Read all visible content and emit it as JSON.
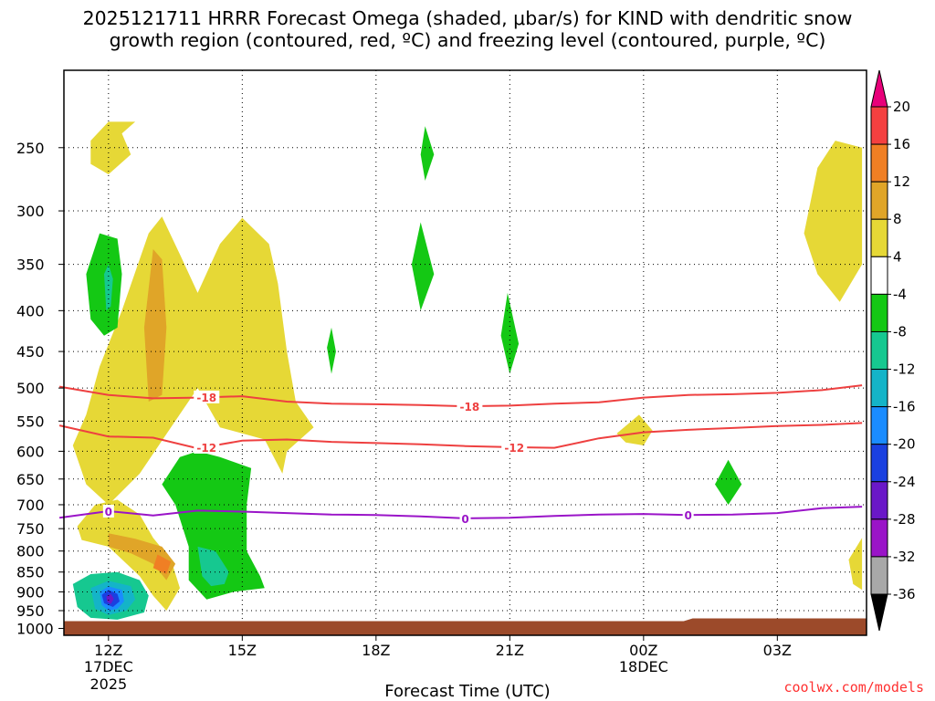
{
  "title_line1": "2025121711 HRRR Forecast Omega (shaded, μbar/s) for KIND with dendritic snow",
  "title_line2": "growth region (contoured, red, ºC) and freezing level (contoured, purple, ºC)",
  "xlabel": "Forecast Time (UTC)",
  "credit": "coolwx.com/models",
  "chart_data": {
    "type": "area",
    "x_ticks": [
      {
        "hour": 12,
        "label": "12Z",
        "sub1": "17DEC",
        "sub2": "2025"
      },
      {
        "hour": 15,
        "label": "15Z",
        "sub1": "",
        "sub2": ""
      },
      {
        "hour": 18,
        "label": "18Z",
        "sub1": "",
        "sub2": ""
      },
      {
        "hour": 21,
        "label": "21Z",
        "sub1": "",
        "sub2": ""
      },
      {
        "hour": 24,
        "label": "00Z",
        "sub1": "18DEC",
        "sub2": ""
      },
      {
        "hour": 27,
        "label": "03Z",
        "sub1": "",
        "sub2": ""
      }
    ],
    "x_range_hours": [
      11,
      29
    ],
    "y_ticks": [
      250,
      300,
      350,
      400,
      450,
      500,
      550,
      600,
      650,
      700,
      750,
      800,
      850,
      900,
      950,
      1000
    ],
    "y_scale": "log-pressure",
    "y_range_hPa": [
      200,
      1020
    ],
    "grid": "dotted",
    "colorbar": {
      "labels": [
        "20",
        "16",
        "12",
        "8",
        "4",
        "-4",
        "-8",
        "-12",
        "-16",
        "-20",
        "-24",
        "-28",
        "-32",
        "-36"
      ],
      "colors": [
        "#e8007a",
        "#f44040",
        "#f07f24",
        "#e0a528",
        "#e6d836",
        "#ffffff",
        "#14c814",
        "#16c890",
        "#14b4c8",
        "#1a8cff",
        "#1a40e0",
        "#6a18c8",
        "#9a14c8",
        "#a8a8a8",
        "#000000"
      ]
    },
    "contours": [
      {
        "name": "-18",
        "color": "#ee4040",
        "points": [
          [
            10.9,
            498
          ],
          [
            12,
            510
          ],
          [
            13,
            515
          ],
          [
            14,
            514
          ],
          [
            15,
            512
          ],
          [
            16,
            520
          ],
          [
            17,
            523
          ],
          [
            18,
            524
          ],
          [
            19,
            525
          ],
          [
            20,
            527
          ],
          [
            21,
            526
          ],
          [
            22,
            523
          ],
          [
            23,
            521
          ],
          [
            24,
            514
          ],
          [
            25,
            510
          ],
          [
            26,
            509
          ],
          [
            27,
            507
          ],
          [
            28,
            503
          ],
          [
            28.9,
            496
          ]
        ]
      },
      {
        "name": "-12",
        "color": "#ee4040",
        "points": [
          [
            10.9,
            557
          ],
          [
            12,
            575
          ],
          [
            13,
            577
          ],
          [
            14,
            595
          ],
          [
            15,
            582
          ],
          [
            16,
            580
          ],
          [
            17,
            584
          ],
          [
            18,
            586
          ],
          [
            19,
            588
          ],
          [
            20,
            591
          ],
          [
            21,
            593
          ],
          [
            22,
            594
          ],
          [
            23,
            578
          ],
          [
            24,
            568
          ],
          [
            25,
            564
          ],
          [
            26,
            561
          ],
          [
            27,
            558
          ],
          [
            28,
            556
          ],
          [
            28.9,
            553
          ]
        ]
      },
      {
        "name": "0",
        "color": "#9a14c8",
        "points": [
          [
            10.9,
            727
          ],
          [
            12,
            713
          ],
          [
            13,
            722
          ],
          [
            14,
            712
          ],
          [
            15,
            714
          ],
          [
            16,
            717
          ],
          [
            17,
            720
          ],
          [
            18,
            721
          ],
          [
            19,
            724
          ],
          [
            20,
            728
          ],
          [
            21,
            727
          ],
          [
            22,
            723
          ],
          [
            23,
            720
          ],
          [
            24,
            719
          ],
          [
            25,
            721
          ],
          [
            26,
            720
          ],
          [
            27,
            717
          ],
          [
            28,
            707
          ],
          [
            28.9,
            704
          ]
        ]
      }
    ],
    "contour_labels": [
      {
        "text": "-18",
        "hour": 14.2,
        "p": 513,
        "color": "#ee4040"
      },
      {
        "text": "-18",
        "hour": 20.1,
        "p": 527,
        "color": "#ee4040"
      },
      {
        "text": "-12",
        "hour": 14.2,
        "p": 593,
        "color": "#ee4040"
      },
      {
        "text": "-12",
        "hour": 21.1,
        "p": 593,
        "color": "#ee4040"
      },
      {
        "text": "0",
        "hour": 12,
        "p": 713,
        "color": "#9a14c8"
      },
      {
        "text": "0",
        "hour": 20,
        "p": 728,
        "color": "#9a14c8"
      },
      {
        "text": "0",
        "hour": 25,
        "p": 721,
        "color": "#9a14c8"
      }
    ],
    "shaded_regions": [
      {
        "name": "rise-4-8-upper-left",
        "color": "#e6d836",
        "points": [
          [
            11.6,
            245
          ],
          [
            12,
            232
          ],
          [
            12.6,
            232
          ],
          [
            12.3,
            240
          ],
          [
            12.5,
            255
          ],
          [
            12,
            270
          ],
          [
            11.6,
            262
          ]
        ]
      },
      {
        "name": "rise-4-8-main",
        "color": "#e6d836",
        "points": [
          [
            11.5,
            540
          ],
          [
            11.8,
            470
          ],
          [
            12.3,
            400
          ],
          [
            12.9,
            320
          ],
          [
            13.2,
            305
          ],
          [
            13.6,
            340
          ],
          [
            14,
            380
          ],
          [
            14.5,
            330
          ],
          [
            15,
            306
          ],
          [
            15.6,
            330
          ],
          [
            15.8,
            370
          ],
          [
            16,
            450
          ],
          [
            16.2,
            520
          ],
          [
            16.6,
            560
          ],
          [
            16,
            600
          ],
          [
            15.9,
            640
          ],
          [
            15.5,
            580
          ],
          [
            14.5,
            560
          ],
          [
            14,
            500
          ],
          [
            13.4,
            560
          ],
          [
            12.7,
            640
          ],
          [
            12,
            700
          ],
          [
            11.5,
            660
          ],
          [
            11.2,
            590
          ]
        ]
      },
      {
        "name": "rise-4-8-low",
        "color": "#e6d836",
        "points": [
          [
            11.3,
            745
          ],
          [
            11.7,
            700
          ],
          [
            12.2,
            690
          ],
          [
            12.7,
            720
          ],
          [
            13,
            770
          ],
          [
            13.4,
            820
          ],
          [
            13.6,
            890
          ],
          [
            13.3,
            950
          ],
          [
            13,
            910
          ],
          [
            12.7,
            860
          ],
          [
            12,
            790
          ],
          [
            11.4,
            775
          ]
        ]
      },
      {
        "name": "rise-8-12",
        "color": "#e0a528",
        "points": [
          [
            13,
            335
          ],
          [
            13.2,
            345
          ],
          [
            13.3,
            420
          ],
          [
            13.2,
            510
          ],
          [
            12.9,
            520
          ],
          [
            12.8,
            420
          ]
        ]
      },
      {
        "name": "rise-8-12-low",
        "color": "#e0a528",
        "points": [
          [
            12,
            760
          ],
          [
            12.6,
            772
          ],
          [
            13.2,
            790
          ],
          [
            13.5,
            830
          ],
          [
            13.3,
            870
          ],
          [
            13,
            830
          ],
          [
            12.5,
            805
          ],
          [
            12,
            790
          ]
        ]
      },
      {
        "name": "rise-12-16",
        "color": "#f07f24",
        "points": [
          [
            13.1,
            808
          ],
          [
            13.4,
            825
          ],
          [
            13.3,
            855
          ],
          [
            13,
            840
          ]
        ]
      },
      {
        "name": "rise-4-8-2300",
        "color": "#e6d836",
        "points": [
          [
            23.4,
            570
          ],
          [
            23.9,
            540
          ],
          [
            24.2,
            565
          ],
          [
            24,
            590
          ],
          [
            23.6,
            585
          ]
        ]
      },
      {
        "name": "rise-4-8-right",
        "color": "#e6d836",
        "points": [
          [
            27.9,
            265
          ],
          [
            28.3,
            245
          ],
          [
            28.9,
            250
          ],
          [
            28.9,
            350
          ],
          [
            28.4,
            390
          ],
          [
            27.9,
            360
          ],
          [
            27.6,
            320
          ]
        ]
      },
      {
        "name": "rise-4-8-right-low",
        "color": "#e6d836",
        "points": [
          [
            28.9,
            770
          ],
          [
            28.6,
            820
          ],
          [
            28.7,
            880
          ],
          [
            28.9,
            895
          ]
        ]
      },
      {
        "name": "sink-4-8-left",
        "color": "#14c814",
        "points": [
          [
            11.5,
            360
          ],
          [
            11.8,
            320
          ],
          [
            12.2,
            325
          ],
          [
            12.3,
            360
          ],
          [
            12.2,
            420
          ],
          [
            11.9,
            430
          ],
          [
            11.6,
            410
          ]
        ]
      },
      {
        "name": "sink-8-12-left",
        "color": "#16c890",
        "points": [
          [
            11.9,
            360
          ],
          [
            12,
            350
          ],
          [
            12.1,
            365
          ],
          [
            12.05,
            395
          ],
          [
            11.95,
            400
          ]
        ]
      },
      {
        "name": "sink-4-8-low",
        "color": "#14c814",
        "points": [
          [
            13.2,
            660
          ],
          [
            13.6,
            610
          ],
          [
            14,
            600
          ],
          [
            14.5,
            610
          ],
          [
            15.2,
            630
          ],
          [
            15.1,
            700
          ],
          [
            15.1,
            800
          ],
          [
            15.4,
            860
          ],
          [
            15.5,
            890
          ],
          [
            14.8,
            900
          ],
          [
            14.2,
            920
          ],
          [
            13.8,
            870
          ],
          [
            13.8,
            790
          ],
          [
            13.5,
            700
          ]
        ]
      },
      {
        "name": "sink-8-12-low",
        "color": "#16c890",
        "points": [
          [
            14,
            790
          ],
          [
            14.4,
            800
          ],
          [
            14.7,
            850
          ],
          [
            14.6,
            880
          ],
          [
            14.3,
            885
          ],
          [
            14.1,
            860
          ]
        ]
      },
      {
        "name": "sink-strong",
        "color": "#16c890",
        "points": [
          [
            11.2,
            880
          ],
          [
            11.6,
            855
          ],
          [
            12.2,
            850
          ],
          [
            12.7,
            870
          ],
          [
            12.9,
            910
          ],
          [
            12.8,
            955
          ],
          [
            12.2,
            975
          ],
          [
            11.6,
            970
          ],
          [
            11.3,
            940
          ]
        ]
      },
      {
        "name": "sink-strong-2",
        "color": "#14b4c8",
        "points": [
          [
            11.6,
            890
          ],
          [
            12,
            872
          ],
          [
            12.5,
            885
          ],
          [
            12.6,
            920
          ],
          [
            12.4,
            950
          ],
          [
            12,
            962
          ],
          [
            11.7,
            945
          ]
        ]
      },
      {
        "name": "sink-strong-3",
        "color": "#1a8cff",
        "points": [
          [
            11.8,
            900
          ],
          [
            12,
            886
          ],
          [
            12.3,
            895
          ],
          [
            12.35,
            925
          ],
          [
            12.2,
            945
          ],
          [
            12,
            950
          ],
          [
            11.85,
            935
          ]
        ]
      },
      {
        "name": "sink-strong-4",
        "color": "#1a40e0",
        "points": [
          [
            11.85,
            908
          ],
          [
            12,
            895
          ],
          [
            12.2,
            905
          ],
          [
            12.25,
            925
          ],
          [
            12.1,
            940
          ],
          [
            11.9,
            930
          ]
        ]
      },
      {
        "name": "sink-strong-5",
        "color": "#6a18c8",
        "points": [
          [
            11.95,
            912
          ],
          [
            12.05,
            905
          ],
          [
            12.12,
            918
          ],
          [
            12.05,
            932
          ],
          [
            11.97,
            926
          ]
        ]
      },
      {
        "name": "sink-1900-top",
        "color": "#14c814",
        "points": [
          [
            19,
            255
          ],
          [
            19.1,
            235
          ],
          [
            19.3,
            255
          ],
          [
            19.1,
            275
          ]
        ]
      },
      {
        "name": "sink-1900-mid",
        "color": "#14c814",
        "points": [
          [
            18.8,
            350
          ],
          [
            19,
            310
          ],
          [
            19.3,
            360
          ],
          [
            19,
            400
          ]
        ]
      },
      {
        "name": "sink-1700",
        "color": "#14c814",
        "points": [
          [
            16.9,
            445
          ],
          [
            17,
            420
          ],
          [
            17.1,
            450
          ],
          [
            17,
            480
          ]
        ]
      },
      {
        "name": "sink-2100",
        "color": "#14c814",
        "points": [
          [
            20.8,
            430
          ],
          [
            20.95,
            380
          ],
          [
            21.2,
            440
          ],
          [
            21,
            480
          ]
        ]
      },
      {
        "name": "sink-0200",
        "color": "#14c814",
        "points": [
          [
            25.6,
            660
          ],
          [
            25.9,
            615
          ],
          [
            26.2,
            660
          ],
          [
            25.9,
            700
          ]
        ]
      }
    ]
  }
}
